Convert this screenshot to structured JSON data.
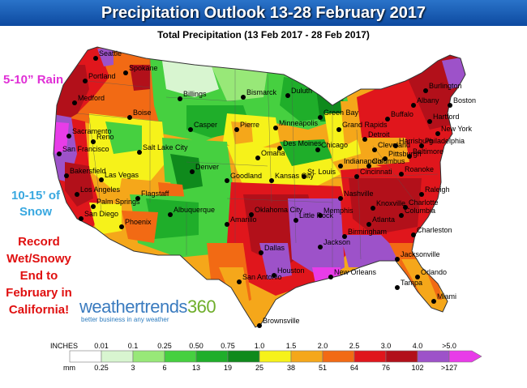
{
  "title": "Precipitation Outlook 13-28 February 2017",
  "subtitle": "Total Precipitation (13 Feb 2017 - 28 Feb 2017)",
  "callouts": {
    "rain": "5-10” Rain",
    "snow": "10-15’ of Snow",
    "record": "Record Wet/Snowy End to February in California!"
  },
  "logo": {
    "main_a": "weather",
    "main_b": "trends",
    "main_c": "360",
    "tagline": "better business in any weather"
  },
  "legend": {
    "inches_label": "INCHES",
    "mm_label": "mm",
    "inches": [
      "0.01",
      "0.1",
      "0.25",
      "0.50",
      "0.75",
      "1.0",
      "1.5",
      "2.0",
      "2.5",
      "3.0",
      "4.0",
      ">5.0"
    ],
    "mm": [
      "0.25",
      "3",
      "6",
      "13",
      "19",
      "25",
      "38",
      "51",
      "64",
      "76",
      "102",
      ">127"
    ],
    "colors": [
      "#ffffff",
      "#d8f5d0",
      "#98e878",
      "#46d040",
      "#1fae2a",
      "#0f8a1c",
      "#f6f21a",
      "#f5a71a",
      "#f26a14",
      "#e0161c",
      "#b2101a",
      "#9d52c9",
      "#e83ce8"
    ]
  },
  "cities": [
    {
      "name": "Seattle"
    },
    {
      "name": "Spokane"
    },
    {
      "name": "Portland"
    },
    {
      "name": "Medford"
    },
    {
      "name": "Boise"
    },
    {
      "name": "Billings"
    },
    {
      "name": "Bismarck"
    },
    {
      "name": "Duluth"
    },
    {
      "name": "Green Bay"
    },
    {
      "name": "Minneapolis"
    },
    {
      "name": "Burlington"
    },
    {
      "name": "Albany"
    },
    {
      "name": "Boston"
    },
    {
      "name": "Buffalo"
    },
    {
      "name": "Hartford"
    },
    {
      "name": "New York"
    },
    {
      "name": "Grand Rapids"
    },
    {
      "name": "Detroit"
    },
    {
      "name": "Harrisburg"
    },
    {
      "name": "Philadelphia"
    },
    {
      "name": "Baltimore"
    },
    {
      "name": "Cleveland"
    },
    {
      "name": "Pittsburgh"
    },
    {
      "name": "Columbus"
    },
    {
      "name": "Indianapolis"
    },
    {
      "name": "Chicago"
    },
    {
      "name": "Des Moines"
    },
    {
      "name": "Omaha"
    },
    {
      "name": "Pierre"
    },
    {
      "name": "Casper"
    },
    {
      "name": "Reno"
    },
    {
      "name": "Sacramento"
    },
    {
      "name": "San Francisco"
    },
    {
      "name": "Salt Lake City"
    },
    {
      "name": "Denver"
    },
    {
      "name": "Goodland"
    },
    {
      "name": "Kansas City"
    },
    {
      "name": "St. Louis"
    },
    {
      "name": "Cincinnati"
    },
    {
      "name": "Roanoke"
    },
    {
      "name": "Raleigh"
    },
    {
      "name": "Charlotte"
    },
    {
      "name": "Knoxville"
    },
    {
      "name": "Nashville"
    },
    {
      "name": "Memphis"
    },
    {
      "name": "Little Rock"
    },
    {
      "name": "Atlanta"
    },
    {
      "name": "Columbia"
    },
    {
      "name": "Charleston"
    },
    {
      "name": "Birmingham"
    },
    {
      "name": "Jackson"
    },
    {
      "name": "New Orleans"
    },
    {
      "name": "Houston"
    },
    {
      "name": "Dallas"
    },
    {
      "name": "Oklahoma City"
    },
    {
      "name": "Amarillo"
    },
    {
      "name": "Albuquerque"
    },
    {
      "name": "Flagstaff"
    },
    {
      "name": "Las Vegas"
    },
    {
      "name": "Bakersfield"
    },
    {
      "name": "Los Angeles"
    },
    {
      "name": "Palm Springs"
    },
    {
      "name": "San Diego"
    },
    {
      "name": "Phoenix"
    },
    {
      "name": "San Antonio"
    },
    {
      "name": "Brownsville"
    },
    {
      "name": "Jacksonville"
    },
    {
      "name": "Orlando"
    },
    {
      "name": "Tampa"
    },
    {
      "name": "Miami"
    }
  ]
}
